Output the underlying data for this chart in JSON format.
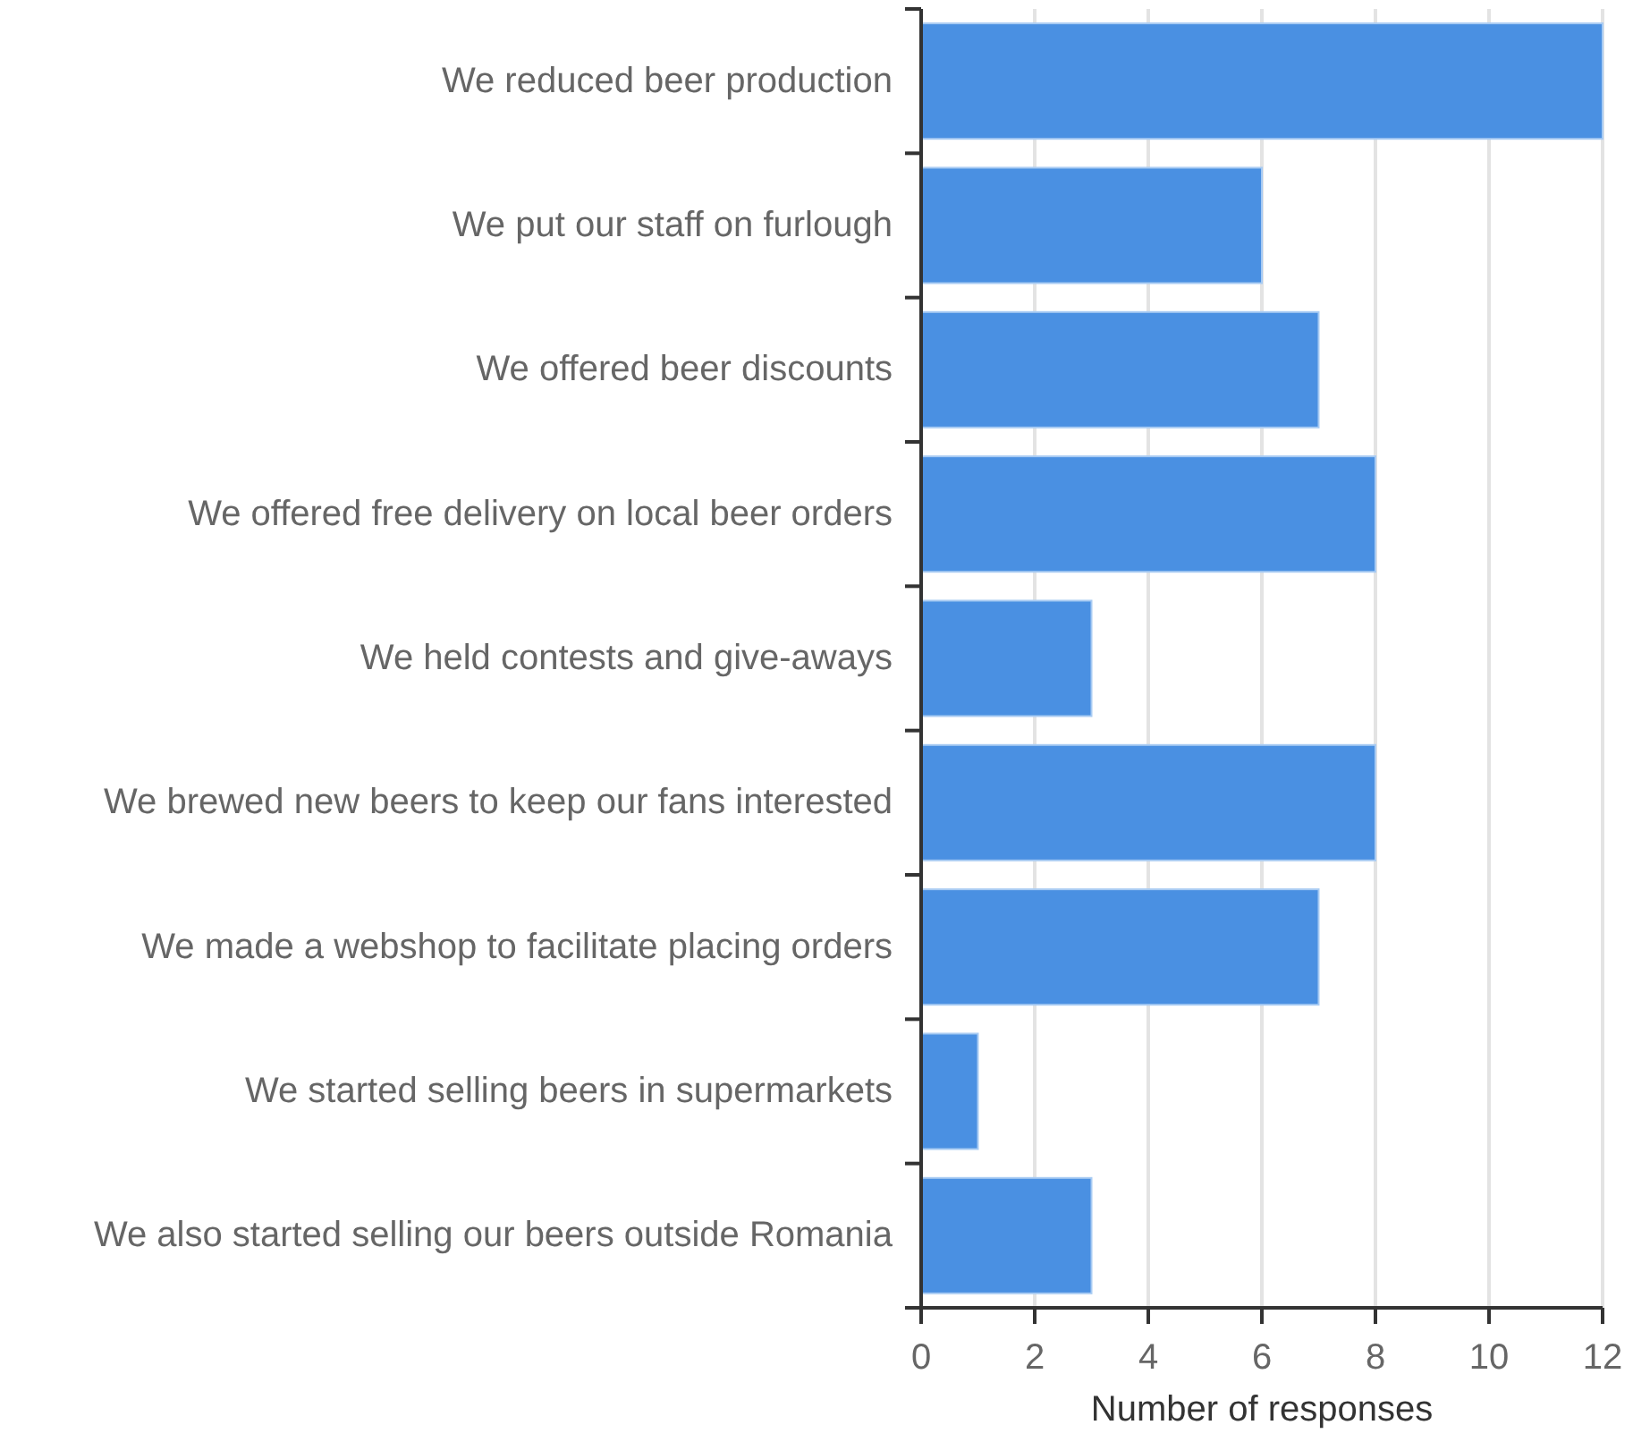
{
  "chart_data": {
    "type": "bar",
    "orientation": "horizontal",
    "categories": [
      "We reduced beer production",
      "We put our staff on furlough",
      "We offered beer discounts",
      "We offered free delivery on local beer orders",
      "We held contests and give-aways",
      "We brewed new beers to keep our fans interested",
      "We made a webshop to facilitate placing orders",
      "We started selling beers in supermarkets",
      "We also started selling our beers outside Romania"
    ],
    "values": [
      12,
      6,
      7,
      8,
      3,
      8,
      7,
      1,
      3
    ],
    "color": "#4a90e2",
    "xlabel": "Number of responses",
    "xlim": [
      0,
      12
    ],
    "xticks": [
      0,
      2,
      4,
      6,
      8,
      10,
      12
    ],
    "grid": "x"
  }
}
